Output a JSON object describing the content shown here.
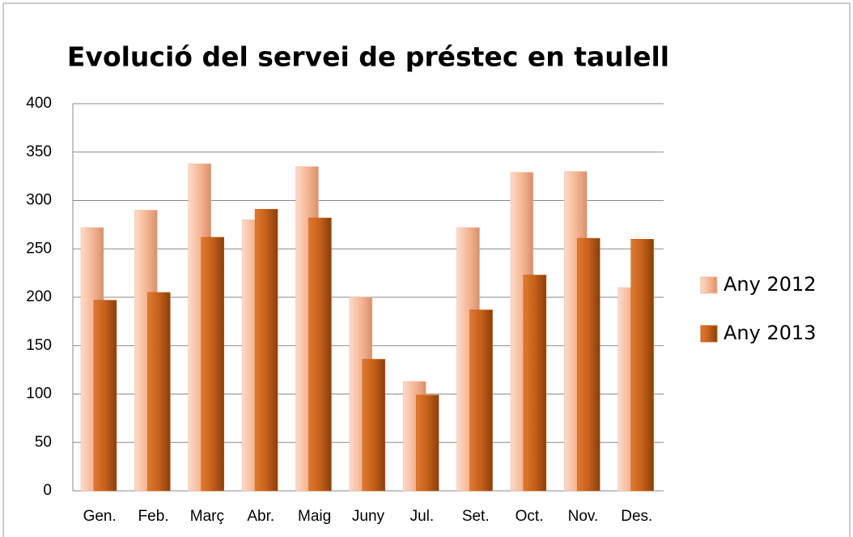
{
  "chart_data": {
    "type": "bar",
    "title": "Evolució del servei de préstec en taulell",
    "categories": [
      "Gen.",
      "Feb.",
      "Març",
      "Abr.",
      "Maig",
      "Juny",
      "Jul.",
      "Set.",
      "Oct.",
      "Nov.",
      "Des."
    ],
    "series": [
      {
        "name": "Any 2012",
        "color": "#f6b795",
        "values": [
          272,
          290,
          338,
          280,
          335,
          200,
          113,
          272,
          329,
          330,
          210
        ]
      },
      {
        "name": "Any 2013",
        "color": "#c4601a",
        "values": [
          197,
          205,
          262,
          291,
          282,
          136,
          99,
          187,
          223,
          261,
          260
        ]
      }
    ],
    "ylim": [
      0,
      400
    ],
    "yticks": [
      0,
      50,
      100,
      150,
      200,
      250,
      300,
      350,
      400
    ],
    "grid": true,
    "legend": "right"
  }
}
